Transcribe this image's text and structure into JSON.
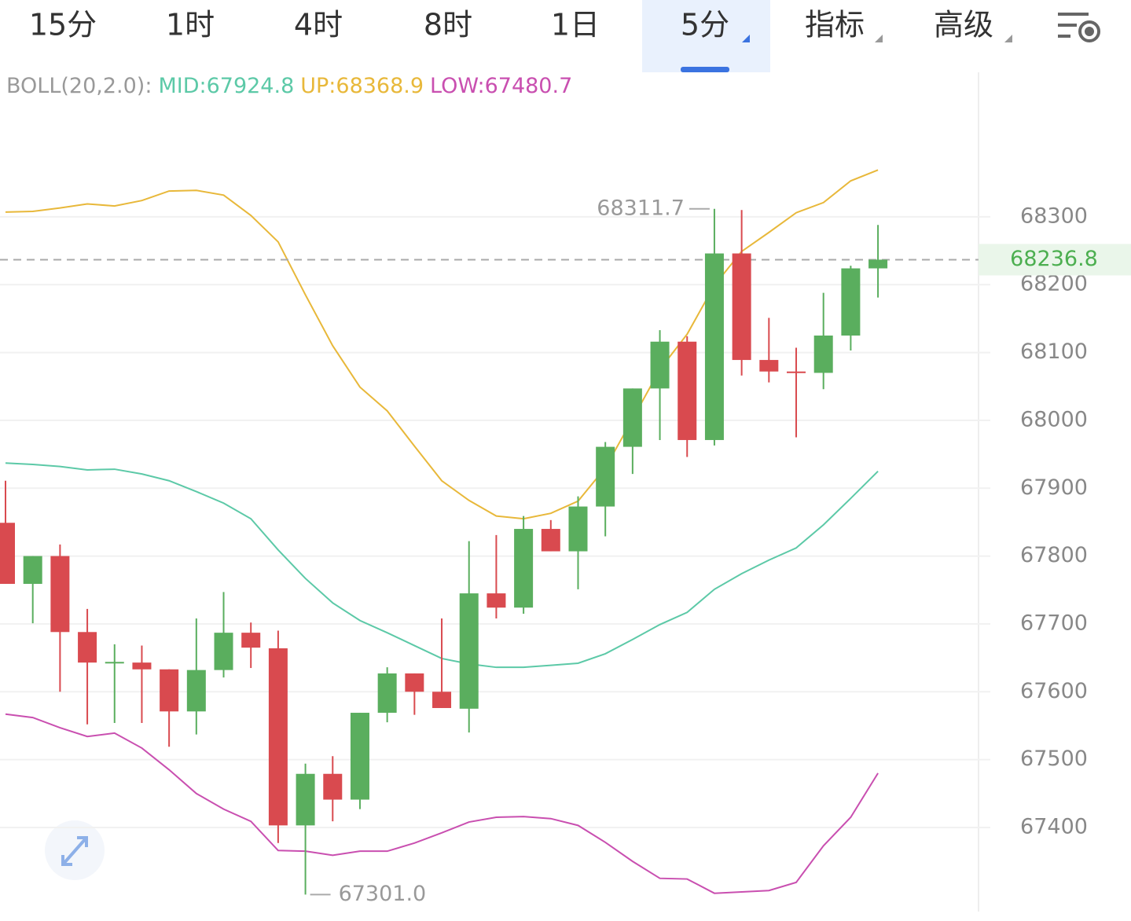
{
  "tabs": [
    "15分",
    "1时",
    "4时",
    "8时",
    "1日",
    "5分",
    "指标",
    "高级"
  ],
  "selected_tab": 5,
  "chart_data": {
    "type": "candlestick",
    "indicator": {
      "label": "BOLL(20,2.0):",
      "lines": [
        {
          "name": "MID:",
          "value": 67924.8,
          "color": "#5cc9a7",
          "values": [
            67937,
            67935,
            67932,
            67927,
            67928,
            67921,
            67911,
            67895,
            67878,
            67855,
            67809,
            67767,
            67731,
            67705,
            67687,
            67668,
            67649,
            67641,
            67636,
            67636,
            67639,
            67642,
            67656,
            67677,
            67699,
            67717,
            67751,
            67774,
            67794,
            67812,
            67846,
            67885,
            67925
          ]
        },
        {
          "name": "UP:",
          "value": 68368.9,
          "color": "#e8b83a",
          "values": [
            68307,
            68308,
            68313,
            68319,
            68316,
            68324,
            68338,
            68339,
            68332,
            68302,
            68263,
            68185,
            68110,
            68049,
            68014,
            67962,
            67911,
            67882,
            67859,
            67855,
            67863,
            67881,
            67930,
            68002,
            68075,
            68127,
            68199,
            68249,
            68277,
            68306,
            68321,
            68353,
            68369
          ]
        },
        {
          "name": "LOW:",
          "value": 67480.7,
          "color": "#c94fb0",
          "values": [
            67567,
            67562,
            67547,
            67534,
            67539,
            67517,
            67485,
            67450,
            67427,
            67409,
            67366,
            67365,
            67359,
            67365,
            67365,
            67377,
            67392,
            67408,
            67415,
            67416,
            67413,
            67403,
            67378,
            67350,
            67325,
            67324,
            67303,
            67305,
            67307,
            67319,
            67373,
            67415,
            67480
          ]
        }
      ]
    },
    "open": [
      67849,
      67759,
      67800,
      67688,
      67643,
      67643,
      67633,
      67571,
      67632,
      67687,
      67664,
      67403,
      67479,
      67441,
      67569,
      67627,
      67600,
      67575,
      67745,
      67724,
      67840,
      67807,
      67873,
      67961,
      68047,
      68116,
      67971,
      68246,
      68089,
      68072,
      68070,
      68125,
      68224
    ],
    "high": [
      67911,
      67800,
      67817,
      67722,
      67670,
      67668,
      67633,
      67708,
      67747,
      67702,
      67690,
      67494,
      67505,
      67569,
      67636,
      67627,
      67708,
      67822,
      67831,
      67859,
      67853,
      67888,
      67968,
      68047,
      68133,
      68124,
      68311.7,
      68310,
      68151,
      68107,
      68188,
      68228,
      68288
    ],
    "low": [
      67759,
      67701,
      67600,
      67552,
      67554,
      67554,
      67519,
      67537,
      67621,
      67635,
      67377,
      67301,
      67409,
      67427,
      67555,
      67566,
      67576,
      67540,
      67708,
      67715,
      67807,
      67751,
      67829,
      67921,
      67971,
      67946,
      67963,
      68066,
      68056,
      67975,
      68046,
      68103,
      68181
    ],
    "close": [
      67759,
      67800,
      67688,
      67643,
      67644,
      67633,
      67571,
      67632,
      67687,
      67665,
      67403,
      67479,
      67441,
      67569,
      67627,
      67600,
      67576,
      67745,
      67724,
      67840,
      67807,
      67873,
      67961,
      68047,
      68116,
      67971,
      68246,
      68089,
      68072,
      68070,
      68125,
      68224,
      68236.8
    ],
    "up_color": "#5aae5e",
    "down_color": "#d94a4f",
    "max_label": 68311.7,
    "min_label": {
      "value": 67301,
      "label": "67301.0"
    },
    "last_price": 68236.8,
    "ylim": [
      67276,
      68513
    ],
    "yticks": [
      67400,
      67500,
      67600,
      67700,
      67800,
      67900,
      68000,
      68100,
      68200,
      68300
    ],
    "grid": true
  }
}
